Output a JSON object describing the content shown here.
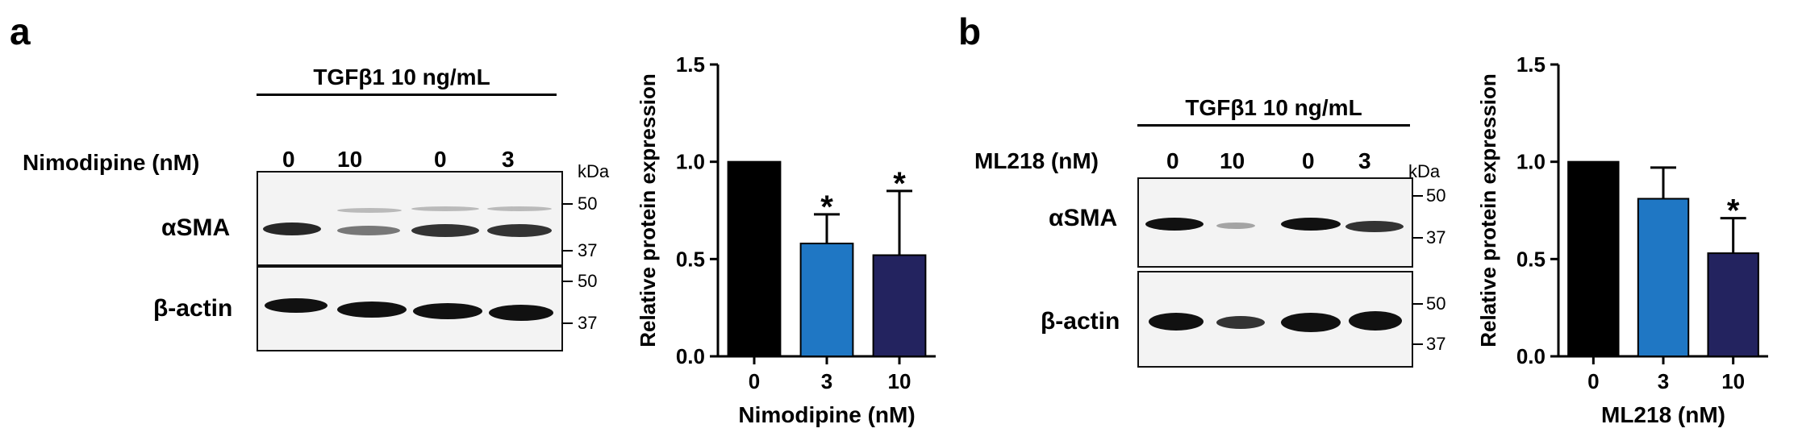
{
  "panels": [
    {
      "letter": "a",
      "treatment_label": "TGFβ1 10 ng/mL",
      "drug_label": "Nimodipine (nM)",
      "lane_doses": [
        "0",
        "10",
        "0",
        "3"
      ],
      "kda_label": "kDa",
      "rows": [
        {
          "label": "αSMA",
          "markers": [
            "50",
            "37"
          ]
        },
        {
          "label": "β-actin",
          "markers": [
            "50",
            "37"
          ]
        }
      ]
    },
    {
      "letter": "b",
      "treatment_label": "TGFβ1 10 ng/mL",
      "drug_label": "ML218 (nM)",
      "lane_doses": [
        "0",
        "10",
        "0",
        "3"
      ],
      "kda_label": "kDa",
      "rows": [
        {
          "label": "αSMA",
          "markers": [
            "50",
            "37"
          ]
        },
        {
          "label": "β-actin",
          "markers": [
            "50",
            "37"
          ]
        }
      ]
    }
  ],
  "chart_data": [
    {
      "type": "bar",
      "title": "",
      "categories": [
        "0",
        "3",
        "10"
      ],
      "values": [
        1.0,
        0.58,
        0.52
      ],
      "errors": [
        0,
        0.15,
        0.33
      ],
      "significance": [
        "",
        "*",
        "*"
      ],
      "colors": [
        "#000000",
        "#1f77c4",
        "#23235f"
      ],
      "xlabel": "Nimodipine (nM)",
      "ylabel": "Relative protein expression",
      "ylim": [
        0,
        1.5
      ],
      "yticks": [
        "0.0",
        "0.5",
        "1.0",
        "1.5"
      ],
      "grid": false
    },
    {
      "type": "bar",
      "title": "",
      "categories": [
        "0",
        "3",
        "10"
      ],
      "values": [
        1.0,
        0.81,
        0.53
      ],
      "errors": [
        0,
        0.16,
        0.18
      ],
      "significance": [
        "",
        "",
        "*"
      ],
      "colors": [
        "#000000",
        "#1f77c4",
        "#23235f"
      ],
      "xlabel": "ML218 (nM)",
      "ylabel": "Relative protein expression",
      "ylim": [
        0,
        1.5
      ],
      "yticks": [
        "0.0",
        "0.5",
        "1.0",
        "1.5"
      ],
      "grid": false
    }
  ]
}
